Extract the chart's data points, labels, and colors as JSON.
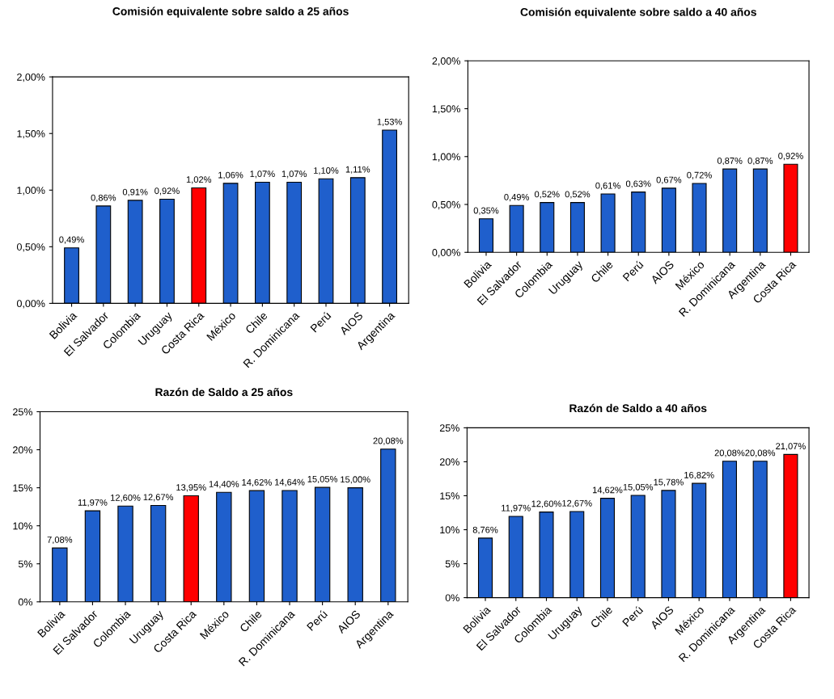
{
  "chart_data": [
    {
      "type": "bar",
      "title": "Comisión equivalente sobre saldo a 25 años",
      "categories": [
        "Bolivia",
        "El Salvador",
        "Colombia",
        "Uruguay",
        "Costa Rica",
        "México",
        "Chile",
        "R. Dominicana",
        "Perú",
        "AIOS",
        "Argentina"
      ],
      "values": [
        0.49,
        0.86,
        0.91,
        0.92,
        1.02,
        1.06,
        1.07,
        1.07,
        1.1,
        1.11,
        1.53
      ],
      "colors": [
        "#1f5fcc",
        "#1f5fcc",
        "#1f5fcc",
        "#1f5fcc",
        "#ff0000",
        "#1f5fcc",
        "#1f5fcc",
        "#1f5fcc",
        "#1f5fcc",
        "#1f5fcc",
        "#1f5fcc"
      ],
      "value_labels": [
        "0,49%",
        "0,86%",
        "0,91%",
        "0,92%",
        "1,02%",
        "1,06%",
        "1,07%",
        "1,07%",
        "1,10%",
        "1,11%",
        "1,53%"
      ],
      "ylim": [
        0,
        2.0
      ],
      "yticks": [
        {
          "value": 0,
          "label": "0,00%"
        },
        {
          "value": 0.5,
          "label": "0,50%"
        },
        {
          "value": 1.0,
          "label": "1,00%"
        },
        {
          "value": 1.5,
          "label": "1,50%"
        },
        {
          "value": 2.0,
          "label": "2,00%"
        }
      ],
      "grid": false
    },
    {
      "type": "bar",
      "title": "Comisión equivalente sobre saldo a 40 años",
      "categories": [
        "Bolivia",
        "El Salvador",
        "Colombia",
        "Uruguay",
        "Chile",
        "Perú",
        "AIOS",
        "México",
        "R. Dominicana",
        "Argentina",
        "Costa Rica"
      ],
      "values": [
        0.35,
        0.49,
        0.52,
        0.52,
        0.61,
        0.63,
        0.67,
        0.72,
        0.87,
        0.87,
        0.92
      ],
      "colors": [
        "#1f5fcc",
        "#1f5fcc",
        "#1f5fcc",
        "#1f5fcc",
        "#1f5fcc",
        "#1f5fcc",
        "#1f5fcc",
        "#1f5fcc",
        "#1f5fcc",
        "#1f5fcc",
        "#ff0000"
      ],
      "value_labels": [
        "0,35%",
        "0,49%",
        "0,52%",
        "0,52%",
        "0,61%",
        "0,63%",
        "0,67%",
        "0,72%",
        "0,87%",
        "0,87%",
        "0,92%"
      ],
      "ylim": [
        0,
        2.0
      ],
      "yticks": [
        {
          "value": 0,
          "label": "0,00%"
        },
        {
          "value": 0.5,
          "label": "0,50%"
        },
        {
          "value": 1.0,
          "label": "1,00%"
        },
        {
          "value": 1.5,
          "label": "1,50%"
        },
        {
          "value": 2.0,
          "label": "2,00%"
        }
      ],
      "grid": false
    },
    {
      "type": "bar",
      "title": "Razón de Saldo a 25 años",
      "categories": [
        "Bolivia",
        "El Salvador",
        "Colombia",
        "Uruguay",
        "Costa Rica",
        "México",
        "Chile",
        "R. Dominicana",
        "Perú",
        "AIOS",
        "Argentina"
      ],
      "values": [
        7.08,
        11.97,
        12.6,
        12.67,
        13.95,
        14.4,
        14.62,
        14.64,
        15.05,
        15.0,
        20.08
      ],
      "colors": [
        "#1f5fcc",
        "#1f5fcc",
        "#1f5fcc",
        "#1f5fcc",
        "#ff0000",
        "#1f5fcc",
        "#1f5fcc",
        "#1f5fcc",
        "#1f5fcc",
        "#1f5fcc",
        "#1f5fcc"
      ],
      "value_labels": [
        "7,08%",
        "11,97%",
        "12,60%",
        "12,67%",
        "13,95%",
        "14,40%",
        "14,62%",
        "14,64%",
        "15,05%",
        "15,00%",
        "20,08%"
      ],
      "ylim": [
        0,
        25
      ],
      "yticks": [
        {
          "value": 0,
          "label": "0%"
        },
        {
          "value": 5,
          "label": "5%"
        },
        {
          "value": 10,
          "label": "10%"
        },
        {
          "value": 15,
          "label": "15%"
        },
        {
          "value": 20,
          "label": "20%"
        },
        {
          "value": 25,
          "label": "25%"
        }
      ],
      "grid": false
    },
    {
      "type": "bar",
      "title": "Razón de Saldo a 40 años",
      "categories": [
        "Bolivia",
        "El Salvador",
        "Colombia",
        "Uruguay",
        "Chile",
        "Perú",
        "AIOS",
        "México",
        "R. Dominicana",
        "Argentina",
        "Costa Rica"
      ],
      "values": [
        8.76,
        11.97,
        12.6,
        12.67,
        14.62,
        15.05,
        15.78,
        16.82,
        20.08,
        20.08,
        21.07
      ],
      "colors": [
        "#1f5fcc",
        "#1f5fcc",
        "#1f5fcc",
        "#1f5fcc",
        "#1f5fcc",
        "#1f5fcc",
        "#1f5fcc",
        "#1f5fcc",
        "#1f5fcc",
        "#1f5fcc",
        "#ff0000"
      ],
      "value_labels": [
        "8,76%",
        "11,97%",
        "12,60%",
        "12,67%",
        "14,62%",
        "15,05%",
        "15,78%",
        "16,82%",
        "20,08%",
        "20,08%",
        "21,07%"
      ],
      "ylim": [
        0,
        25
      ],
      "yticks": [
        {
          "value": 0,
          "label": "0%"
        },
        {
          "value": 5,
          "label": "5%"
        },
        {
          "value": 10,
          "label": "10%"
        },
        {
          "value": 15,
          "label": "15%"
        },
        {
          "value": 20,
          "label": "20%"
        },
        {
          "value": 25,
          "label": "25%"
        }
      ],
      "grid": false
    }
  ]
}
